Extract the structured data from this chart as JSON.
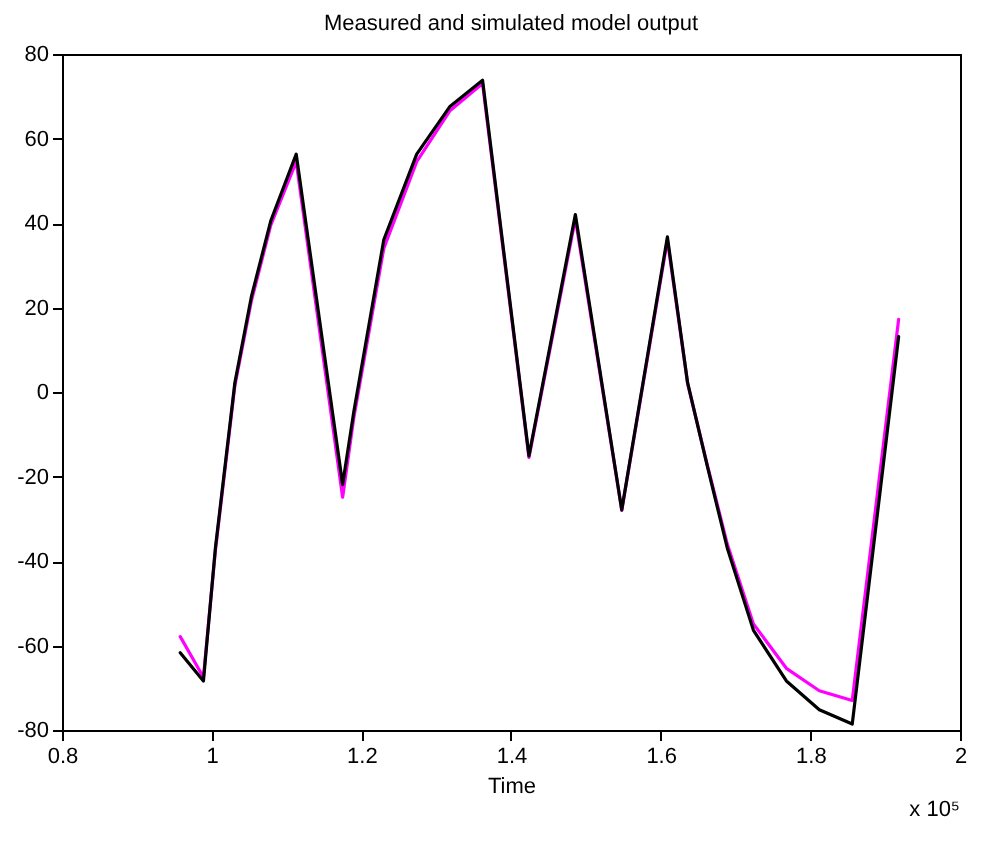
{
  "chart_data": {
    "type": "line",
    "title": "Measured and simulated model output",
    "xlabel": "Time",
    "annotations": [
      "x 10⁵"
    ],
    "xlim": [
      0.8,
      2.0
    ],
    "xticks": [
      0.8,
      1,
      1.2,
      1.4,
      1.6,
      1.8,
      2
    ],
    "ylim": [
      -80,
      80
    ],
    "yticks": [
      -80,
      -60,
      -40,
      -20,
      0,
      20,
      40,
      60,
      80
    ],
    "line_style": "solid",
    "series": [
      {
        "color": "#ff00ff",
        "x": [
          0.958,
          0.989,
          1.005,
          1.031,
          1.053,
          1.079,
          1.113,
          1.175,
          1.19,
          1.23,
          1.274,
          1.318,
          1.362,
          1.424,
          1.486,
          1.548,
          1.609,
          1.636,
          1.662,
          1.689,
          1.724,
          1.768,
          1.812,
          1.856,
          1.918
        ],
        "values": [
          -57.9,
          -67.5,
          -37.5,
          1.5,
          21.5,
          39.5,
          54.5,
          -24.9,
          -6,
          34,
          54.5,
          66.5,
          73,
          -15.5,
          41,
          -28,
          36,
          2,
          -17,
          -36,
          -54.9,
          -65.4,
          -70.7,
          -73,
          17.2
        ]
      },
      {
        "color": "#000000",
        "x": [
          0.958,
          0.989,
          1.005,
          1.031,
          1.053,
          1.079,
          1.113,
          1.175,
          1.19,
          1.23,
          1.274,
          1.318,
          1.362,
          1.424,
          1.486,
          1.548,
          1.609,
          1.636,
          1.662,
          1.689,
          1.724,
          1.768,
          1.812,
          1.856,
          1.918
        ],
        "values": [
          -61.7,
          -68.4,
          -36.9,
          2.2,
          22.5,
          40.5,
          56.3,
          -21.9,
          -4.6,
          36,
          56.3,
          67.5,
          73.8,
          -15.1,
          42,
          -27.9,
          36.7,
          2.2,
          -17.3,
          -36.9,
          -56.4,
          -68.4,
          -75.2,
          -78.6,
          13.1
        ]
      }
    ]
  }
}
